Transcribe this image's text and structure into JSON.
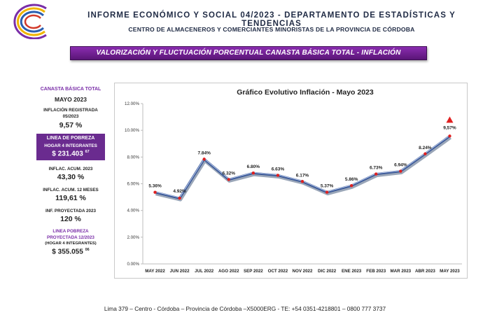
{
  "header": {
    "line1": "INFORME ECONÓMICO Y SOCIAL 04/2023 - DEPARTAMENTO DE ESTADÍSTICAS Y TENDENCIAS",
    "line2": "CENTRO DE ALMACENEROS Y COMERCIANTES MINORISTAS DE LA PROVINCIA DE CÓRDOBA",
    "banner": "VALORIZACIÓN Y FLUCTUACIÓN PORCENTUAL CANASTA BÁSICA TOTAL - INFLACIÓN"
  },
  "side": {
    "title": "CANASTA BÁSICA TOTAL",
    "month": "MAYO 2023",
    "inflation_label_1": "INFLACIÓN REGISTRADA",
    "inflation_label_2": "05/2023",
    "inflation_value": "9,57 %",
    "poverty_title": "LINEA DE POBREZA",
    "poverty_sub": "HOGAR 4 INTEGRANTES",
    "poverty_value": "$ 231.403",
    "poverty_cents": "67",
    "acum_label_1": "INFLAC. ACUM.",
    "acum_label_2": "2023",
    "acum_value": "43,30 %",
    "acum12_label": "INFLAC. ACUM. 12 MESES",
    "acum12_value": "119,61 %",
    "proj_label": "INF. PROYECTADA 2023",
    "proj_value": "120 %",
    "proj_poverty_1": "LINEA POBREZA",
    "proj_poverty_2": "PROYECTADA 12/2023",
    "proj_poverty_3": "(HOGAR 4 INTEGRANTES)",
    "proj_poverty_value": "$ 355.055",
    "proj_poverty_cents": "06"
  },
  "footer": {
    "text": "Lima 379 – Centro - Córdoba – Provincia de Córdoba –X5000ERG - TE: +54 0351-4218801 – 0800 777 3737"
  },
  "colors": {
    "brand_purple": "#6a2b8f",
    "line": "#3b5998",
    "marker": "#e02020"
  },
  "chart_data": {
    "type": "line",
    "title": "Gráfico Evolutivo Inflación - Mayo 2023",
    "xlabel": "",
    "ylabel": "",
    "categories": [
      "MAY 2022",
      "JUN 2022",
      "JUL 2022",
      "AGO 2022",
      "SEP 2022",
      "OCT 2022",
      "NOV 2022",
      "DIC 2022",
      "ENE 2023",
      "FEB 2023",
      "MAR 2023",
      "ABR 2023",
      "MAY 2023"
    ],
    "values": [
      5.36,
      4.92,
      7.84,
      6.32,
      6.8,
      6.63,
      6.17,
      5.37,
      5.86,
      6.73,
      6.94,
      8.24,
      9.57
    ],
    "data_labels": [
      "5.36%",
      "4.92%",
      "7.84%",
      "6.32%",
      "6.80%",
      "6.63%",
      "6.17%",
      "5.37%",
      "5.86%",
      "6.73%",
      "6.94%",
      "8.24%",
      "9,57%"
    ],
    "ylim": [
      0,
      12
    ],
    "yticks": [
      0,
      2,
      4,
      6,
      8,
      10,
      12
    ],
    "ytick_labels": [
      "0.00%",
      "2.00%",
      "4.00%",
      "6.00%",
      "8.00%",
      "10.00%",
      "12.00%"
    ],
    "grid": false,
    "legend": "none",
    "highlight_last": true
  }
}
